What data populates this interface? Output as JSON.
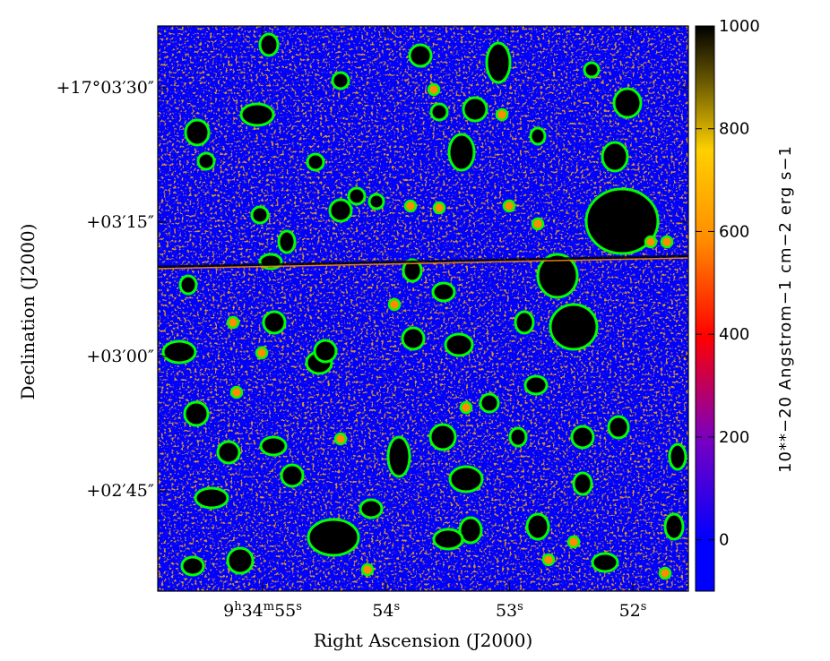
{
  "chart_data": {
    "type": "heatmap",
    "title": "",
    "xlabel": "Right Ascension (J2000)",
    "ylabel": "Declination (J2000)",
    "x_ticks": [
      {
        "h": "9",
        "m": "34",
        "s": "55",
        "sec": 55
      },
      {
        "s": "54",
        "sec": 54
      },
      {
        "s": "53",
        "sec": 53
      },
      {
        "s": "52",
        "sec": 52
      }
    ],
    "xlim_sec": [
      55.85,
      51.55
    ],
    "y_ticks": [
      {
        "text": "+17°03′30″",
        "arcsec_offset": 210
      },
      {
        "text": "+03′15″",
        "arcsec_offset": 195
      },
      {
        "text": "+03′00″",
        "arcsec_offset": 180
      },
      {
        "text": "+02′45″",
        "arcsec_offset": 165
      }
    ],
    "ylim_arcsec": [
      153.8,
      216.9
    ],
    "colorbar": {
      "label": "10**−20 Angstrom−1 cm−2 erg s−1",
      "ticks": [
        "0",
        "200",
        "400",
        "600",
        "800",
        "1000"
      ],
      "tick_values": [
        0,
        200,
        400,
        600,
        800,
        1000
      ],
      "range": [
        -100,
        1000
      ],
      "colors": [
        "#0000ff",
        "#7a00c0",
        "#ff0000",
        "#ff8c00",
        "#ffd000",
        "#000000"
      ]
    },
    "contour_color": "#00ff00",
    "background_color": "#0000ff",
    "grid": false,
    "legend": "none"
  }
}
